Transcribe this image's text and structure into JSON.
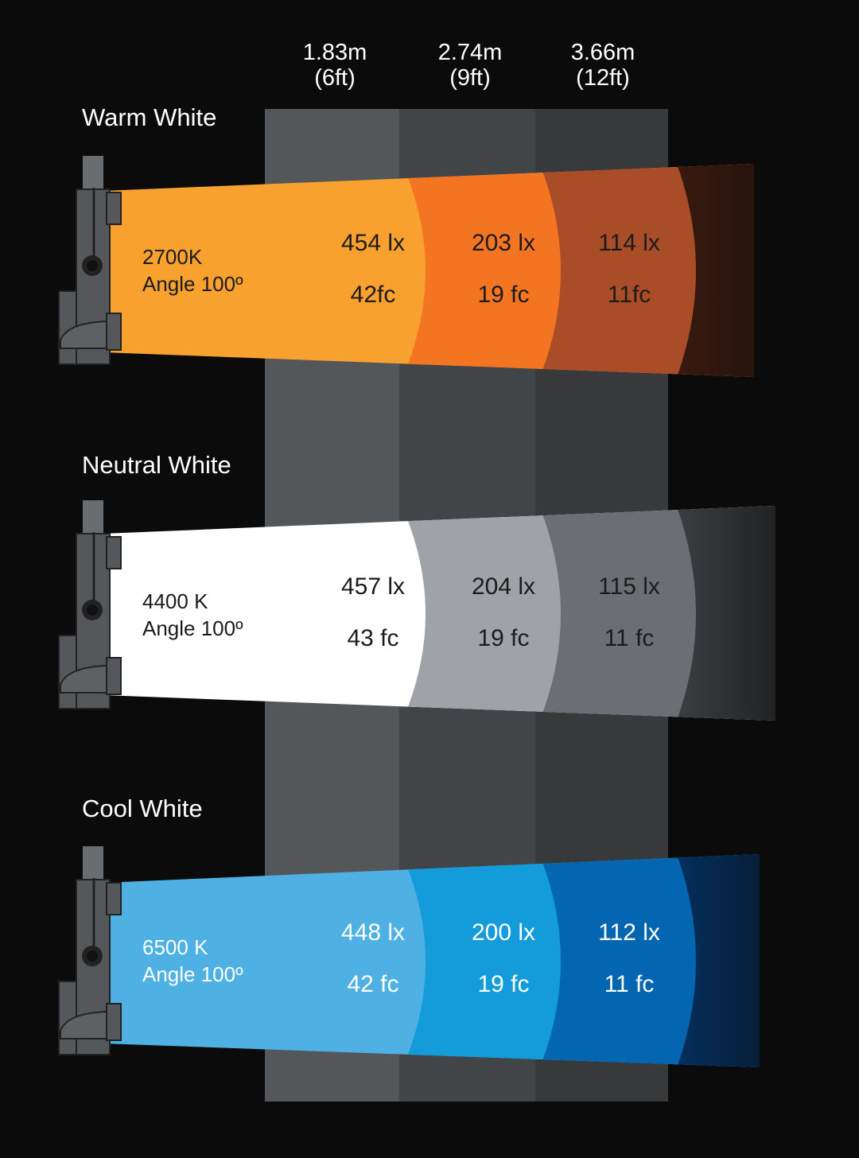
{
  "distances": [
    {
      "m": "1.83m",
      "ft": "(6ft)"
    },
    {
      "m": "2.74m",
      "ft": "(9ft)"
    },
    {
      "m": "3.66m",
      "ft": "(12ft)"
    }
  ],
  "beams": [
    {
      "title": "Warm White",
      "cct": "2700K",
      "angle": "Angle 100º",
      "text_color": "#1b1b1b",
      "colors": [
        "#f8a12f",
        "#f37522",
        "#a94d28",
        "#3a1a0e"
      ],
      "readings": [
        {
          "lx": "454 lx",
          "fc": "42fc"
        },
        {
          "lx": "203 lx",
          "fc": "19 fc"
        },
        {
          "lx": "114 lx",
          "fc": "11fc"
        }
      ]
    },
    {
      "title": "Neutral White",
      "cct": "4400 K",
      "angle": "Angle 100º",
      "text_color": "#1b1b1b",
      "colors": [
        "#ffffff",
        "#9fa3a7",
        "#6b6e73",
        "#3d3f43"
      ],
      "readings": [
        {
          "lx": "457 lx",
          "fc": "43 fc"
        },
        {
          "lx": "204 lx",
          "fc": "19 fc"
        },
        {
          "lx": "115 lx",
          "fc": "11 fc"
        }
      ]
    },
    {
      "title": "Cool White",
      "cct": "6500 K",
      "angle": "Angle 100º",
      "text_color": "#ffffff",
      "colors": [
        "#4fb1e3",
        "#149bd9",
        "#0465b0",
        "#04305f"
      ],
      "readings": [
        {
          "lx": "448 lx",
          "fc": "42 fc"
        },
        {
          "lx": "200 lx",
          "fc": "19 fc"
        },
        {
          "lx": "112 lx",
          "fc": "11 fc"
        }
      ]
    }
  ]
}
